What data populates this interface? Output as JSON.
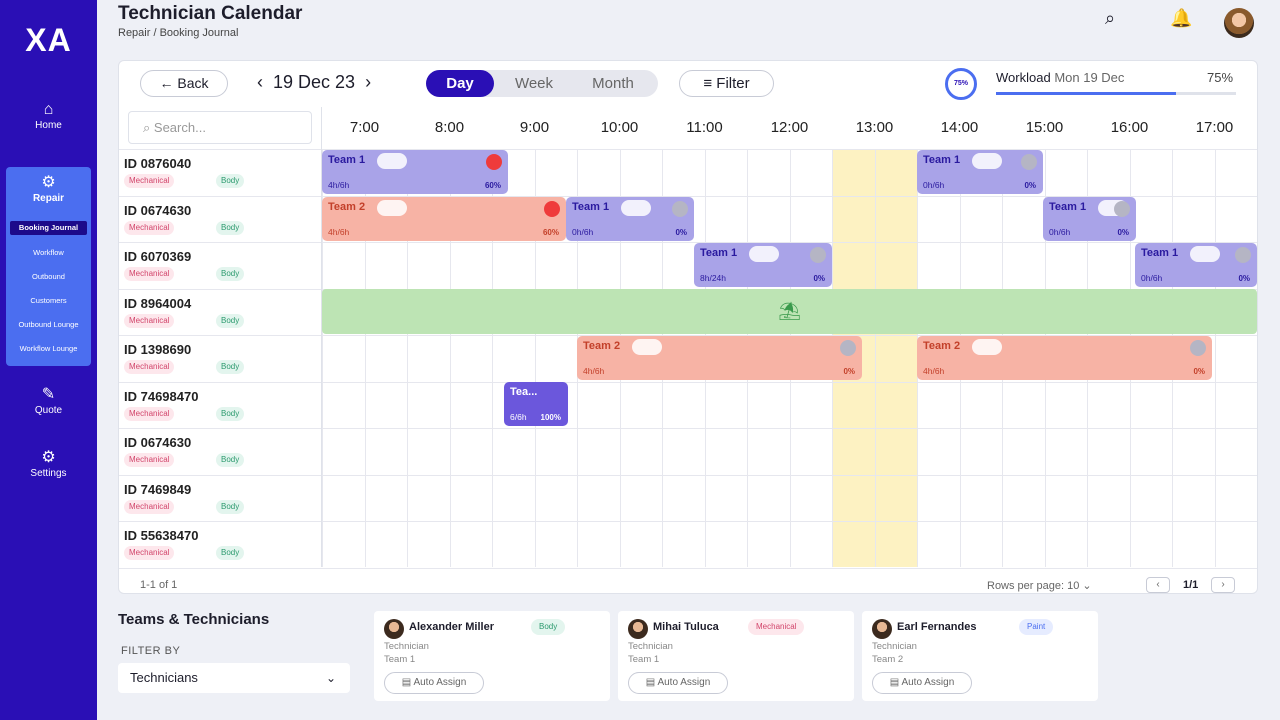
{
  "sidebar": {
    "logo": "XA",
    "home": "Home",
    "repair": "Repair",
    "repair_items": [
      "Booking Journal",
      "Workflow",
      "Outbound",
      "Customers",
      "Outbound Lounge",
      "Workflow Lounge"
    ],
    "quote": "Quote",
    "settings": "Settings"
  },
  "header": {
    "title": "Technician Calendar",
    "breadcrumb": "Repair / Booking Journal"
  },
  "toolbar": {
    "back": "Back",
    "date": "19 Dec 23",
    "views": [
      "Day",
      "Week",
      "Month"
    ],
    "active_view": "Day",
    "filter": "Filter",
    "workload_label": "Workload",
    "workload_date": "Mon 19 Dec",
    "workload_pct": "75%",
    "workload_ring": "75%",
    "workload_value": 0.75
  },
  "search": {
    "placeholder": "Search..."
  },
  "hours": [
    "7:00",
    "8:00",
    "9:00",
    "10:00",
    "11:00",
    "12:00",
    "13:00",
    "14:00",
    "15:00",
    "16:00",
    "17:00"
  ],
  "rows": [
    {
      "id": "ID 0876040",
      "tags": [
        "Mechanical",
        "Body"
      ]
    },
    {
      "id": "ID 0674630",
      "tags": [
        "Mechanical",
        "Body"
      ]
    },
    {
      "id": "ID 6070369",
      "tags": [
        "Mechanical",
        "Body"
      ]
    },
    {
      "id": "ID 8964004",
      "tags": [
        "Mechanical",
        "Body"
      ]
    },
    {
      "id": "ID 1398690",
      "tags": [
        "Mechanical",
        "Body"
      ]
    },
    {
      "id": "ID 74698470",
      "tags": [
        "Mechanical",
        "Body"
      ]
    },
    {
      "id": "ID 0674630",
      "tags": [
        "Mechanical",
        "Body"
      ]
    },
    {
      "id": "ID 7469849",
      "tags": [
        "Mechanical",
        "Body"
      ]
    },
    {
      "id": "ID 55638470",
      "tags": [
        "Mechanical",
        "Body"
      ]
    }
  ],
  "jobs": [
    {
      "team": "Team 1",
      "hours": "4h/6h",
      "pct": "60%",
      "color": "purple"
    },
    {
      "team": "Team 1",
      "hours": "0h/6h",
      "pct": "0%",
      "color": "purple"
    },
    {
      "team": "Team 2",
      "hours": "4h/6h",
      "pct": "60%",
      "color": "salmon"
    },
    {
      "team": "Team 1",
      "hours": "0h/6h",
      "pct": "0%",
      "color": "purple"
    },
    {
      "team": "Team 1",
      "hours": "0h/6h",
      "pct": "0%",
      "color": "purple"
    },
    {
      "team": "Team 1",
      "hours": "8h/24h",
      "pct": "0%",
      "color": "purple"
    },
    {
      "team": "Team 1",
      "hours": "0h/6h",
      "pct": "0%",
      "color": "purple"
    },
    {
      "team": "Team 2",
      "hours": "4h/6h",
      "pct": "0%",
      "color": "salmon"
    },
    {
      "team": "Team 2",
      "hours": "4h/6h",
      "pct": "0%",
      "color": "salmon"
    },
    {
      "team": "Tea...",
      "hours": "6/6h",
      "pct": "100%",
      "color": "purple-d"
    }
  ],
  "footer": {
    "range": "1-1 of 1",
    "rows_per_page": "Rows per page: 10",
    "page": "1/1"
  },
  "teams": {
    "title": "Teams & Technicians",
    "filter_by": "FILTER BY",
    "filter_value": "Technicians",
    "technicians": [
      {
        "name": "Alexander Miller",
        "role": "Technician",
        "team": "Team 1",
        "skill": "Body",
        "action": "Auto Assign"
      },
      {
        "name": "Mihai Tuluca",
        "role": "Technician",
        "team": "Team 1",
        "skill": "Mechanical",
        "action": "Auto Assign"
      },
      {
        "name": "Earl Fernandes",
        "role": "Technician",
        "team": "Team 2",
        "skill": "Paint",
        "action": "Auto Assign"
      }
    ]
  }
}
